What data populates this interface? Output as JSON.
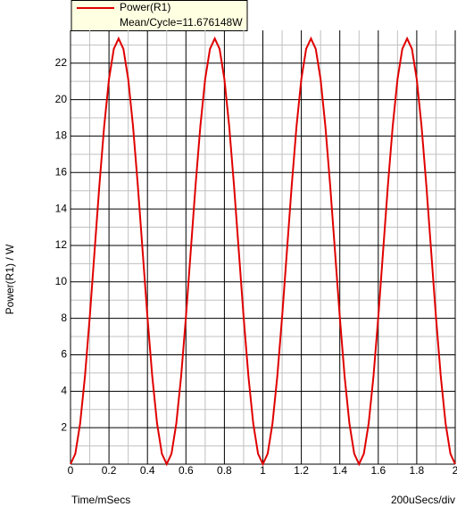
{
  "chart_data": {
    "type": "line",
    "legend_title": "Mean/Cycle=11.676148W",
    "ylabel": "Power(R1) / W",
    "xlabel": "Time/mSecs",
    "x_scale_note": "200uSecs/div",
    "x": [
      0,
      0.025,
      0.05,
      0.075,
      0.1,
      0.125,
      0.15,
      0.175,
      0.2,
      0.225,
      0.25,
      0.275,
      0.3,
      0.325,
      0.35,
      0.375,
      0.4,
      0.425,
      0.45,
      0.475,
      0.5,
      0.525,
      0.55,
      0.575,
      0.6,
      0.625,
      0.65,
      0.675,
      0.7,
      0.725,
      0.75,
      0.775,
      0.8,
      0.825,
      0.85,
      0.875,
      0.9,
      0.925,
      0.95,
      0.975,
      1,
      1.025,
      1.05,
      1.075,
      1.1,
      1.125,
      1.15,
      1.175,
      1.2,
      1.225,
      1.25,
      1.275,
      1.3,
      1.325,
      1.35,
      1.375,
      1.4,
      1.425,
      1.45,
      1.475,
      1.5,
      1.525,
      1.55,
      1.575,
      1.6,
      1.625,
      1.65,
      1.675,
      1.7,
      1.725,
      1.75,
      1.775,
      1.8,
      1.825,
      1.85,
      1.875,
      1.9,
      1.925,
      1.95,
      1.975,
      2
    ],
    "series": [
      {
        "name": "Power(R1)",
        "color": "#e00000",
        "values": [
          0,
          0.571,
          2.23,
          4.813,
          8.068,
          11.676,
          15.284,
          18.539,
          21.122,
          22.781,
          23.352,
          22.781,
          21.122,
          18.539,
          15.284,
          11.676,
          8.068,
          4.813,
          2.23,
          0.571,
          0,
          0.571,
          2.23,
          4.813,
          8.068,
          11.676,
          15.284,
          18.539,
          21.122,
          22.781,
          23.352,
          22.781,
          21.122,
          18.539,
          15.284,
          11.676,
          8.068,
          4.813,
          2.23,
          0.571,
          0,
          0.571,
          2.23,
          4.813,
          8.068,
          11.676,
          15.284,
          18.539,
          21.122,
          22.781,
          23.352,
          22.781,
          21.122,
          18.539,
          15.284,
          11.676,
          8.068,
          4.813,
          2.23,
          0.571,
          0,
          0.571,
          2.23,
          4.813,
          8.068,
          11.676,
          15.284,
          18.539,
          21.122,
          22.781,
          23.352,
          22.781,
          21.122,
          18.539,
          15.284,
          11.676,
          8.068,
          4.813,
          2.23,
          0.571,
          0
        ]
      }
    ],
    "xlim": [
      0,
      2
    ],
    "xticks": [
      0,
      0.2,
      0.4,
      0.6,
      0.8,
      1,
      1.2,
      1.4,
      1.6,
      1.8,
      2
    ],
    "ylim": [
      0,
      23.8
    ],
    "yticks": [
      2,
      4,
      6,
      8,
      10,
      12,
      14,
      16,
      18,
      20,
      22
    ],
    "grid": true
  }
}
